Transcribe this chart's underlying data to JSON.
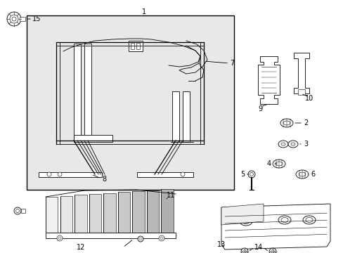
{
  "background_color": "#ffffff",
  "line_color": "#000000",
  "gray_fill": "#e8e8e8",
  "figsize": [
    4.89,
    3.6
  ],
  "dpi": 100
}
